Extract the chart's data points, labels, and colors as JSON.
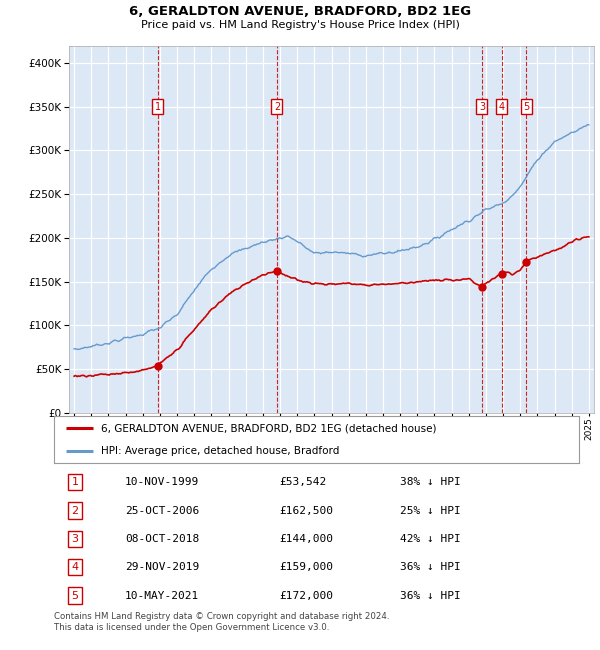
{
  "title": "6, GERALDTON AVENUE, BRADFORD, BD2 1EG",
  "subtitle": "Price paid vs. HM Land Registry's House Price Index (HPI)",
  "legend_line1": "6, GERALDTON AVENUE, BRADFORD, BD2 1EG (detached house)",
  "legend_line2": "HPI: Average price, detached house, Bradford",
  "footer": "Contains HM Land Registry data © Crown copyright and database right 2024.\nThis data is licensed under the Open Government Licence v3.0.",
  "sale_line_color": "#cc0000",
  "hpi_line_color": "#6699cc",
  "background_color": "#dce8f5",
  "plot_bg": "#ffffff",
  "ylim": [
    0,
    420000
  ],
  "yticks": [
    0,
    50000,
    100000,
    150000,
    200000,
    250000,
    300000,
    350000,
    400000
  ],
  "xlim_start": 1994.7,
  "xlim_end": 2025.3,
  "sales": [
    {
      "num": 1,
      "date_str": "10-NOV-1999",
      "price": 53542,
      "pct": "38% ↓ HPI",
      "year": 1999.87
    },
    {
      "num": 2,
      "date_str": "25-OCT-2006",
      "price": 162500,
      "pct": "25% ↓ HPI",
      "year": 2006.82
    },
    {
      "num": 3,
      "date_str": "08-OCT-2018",
      "price": 144000,
      "pct": "42% ↓ HPI",
      "year": 2018.77
    },
    {
      "num": 4,
      "date_str": "29-NOV-2019",
      "price": 159000,
      "pct": "36% ↓ HPI",
      "year": 2019.92
    },
    {
      "num": 5,
      "date_str": "10-MAY-2021",
      "price": 172000,
      "pct": "36% ↓ HPI",
      "year": 2021.36
    }
  ],
  "table_rows": [
    [
      "1",
      "10-NOV-1999",
      "£53,542",
      "38% ↓ HPI"
    ],
    [
      "2",
      "25-OCT-2006",
      "£162,500",
      "25% ↓ HPI"
    ],
    [
      "3",
      "08-OCT-2018",
      "£144,000",
      "42% ↓ HPI"
    ],
    [
      "4",
      "29-NOV-2019",
      "£159,000",
      "36% ↓ HPI"
    ],
    [
      "5",
      "10-MAY-2021",
      "£172,000",
      "36% ↓ HPI"
    ]
  ]
}
